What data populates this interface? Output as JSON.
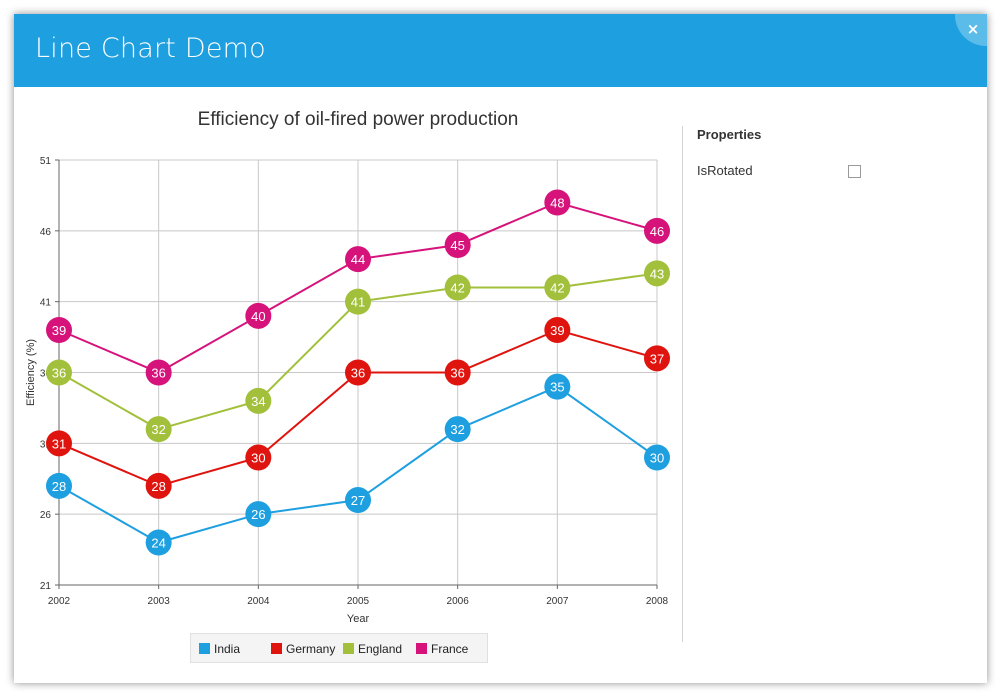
{
  "window": {
    "title": "Line Chart Demo",
    "close_label": "×"
  },
  "properties": {
    "header": "Properties",
    "items": [
      {
        "label": "IsRotated",
        "checked": false
      }
    ]
  },
  "chart_data": {
    "type": "line",
    "title": "Efficiency of oil-fired power production",
    "xlabel": "Year",
    "ylabel": "Efficiency (%)",
    "x": [
      2002,
      2003,
      2004,
      2005,
      2006,
      2007,
      2008
    ],
    "xlim": [
      2002,
      2008
    ],
    "ylim": [
      21,
      51
    ],
    "yticks": [
      21,
      26,
      31,
      36,
      41,
      46,
      51
    ],
    "grid": true,
    "legend_position": "bottom",
    "series": [
      {
        "name": "India",
        "color": "#1e9fe0",
        "values": [
          28,
          24,
          26,
          27,
          32,
          35,
          30
        ]
      },
      {
        "name": "Germany",
        "color": "#e0140e",
        "values": [
          31,
          28,
          30,
          36,
          36,
          39,
          37
        ]
      },
      {
        "name": "England",
        "color": "#a2c03b",
        "values": [
          36,
          32,
          34,
          41,
          42,
          42,
          43
        ]
      },
      {
        "name": "France",
        "color": "#d6127b",
        "values": [
          39,
          36,
          40,
          44,
          45,
          48,
          46
        ]
      }
    ]
  }
}
